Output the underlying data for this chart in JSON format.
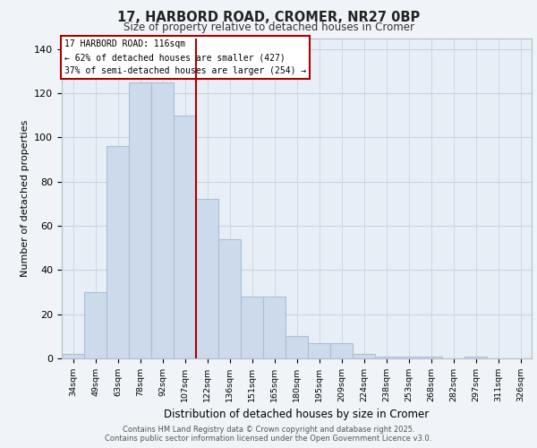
{
  "title_line1": "17, HARBORD ROAD, CROMER, NR27 0BP",
  "title_line2": "Size of property relative to detached houses in Cromer",
  "xlabel": "Distribution of detached houses by size in Cromer",
  "ylabel": "Number of detached properties",
  "categories": [
    "34sqm",
    "49sqm",
    "63sqm",
    "78sqm",
    "92sqm",
    "107sqm",
    "122sqm",
    "136sqm",
    "151sqm",
    "165sqm",
    "180sqm",
    "195sqm",
    "209sqm",
    "224sqm",
    "238sqm",
    "253sqm",
    "268sqm",
    "282sqm",
    "297sqm",
    "311sqm",
    "326sqm"
  ],
  "values": [
    2,
    30,
    96,
    125,
    125,
    110,
    72,
    54,
    28,
    28,
    10,
    7,
    7,
    2,
    1,
    1,
    1,
    0,
    1,
    0,
    0
  ],
  "bar_color": "#ccdaeb",
  "bar_edge_color": "#aabfd8",
  "vline_index": 6,
  "vline_label": "17 HARBORD ROAD: 116sqm",
  "annotation_line1": "← 62% of detached houses are smaller (427)",
  "annotation_line2": "37% of semi-detached houses are larger (254) →",
  "annotation_box_color": "#ffffff",
  "annotation_box_edge": "#aa0000",
  "vline_color": "#aa0000",
  "footer_line1": "Contains HM Land Registry data © Crown copyright and database right 2025.",
  "footer_line2": "Contains public sector information licensed under the Open Government Licence v3.0.",
  "ylim": [
    0,
    145
  ],
  "yticks": [
    0,
    20,
    40,
    60,
    80,
    100,
    120,
    140
  ],
  "grid_color": "#c8d4e0",
  "bg_color": "#e8eef5",
  "fig_bg_color": "#f0f4f8"
}
